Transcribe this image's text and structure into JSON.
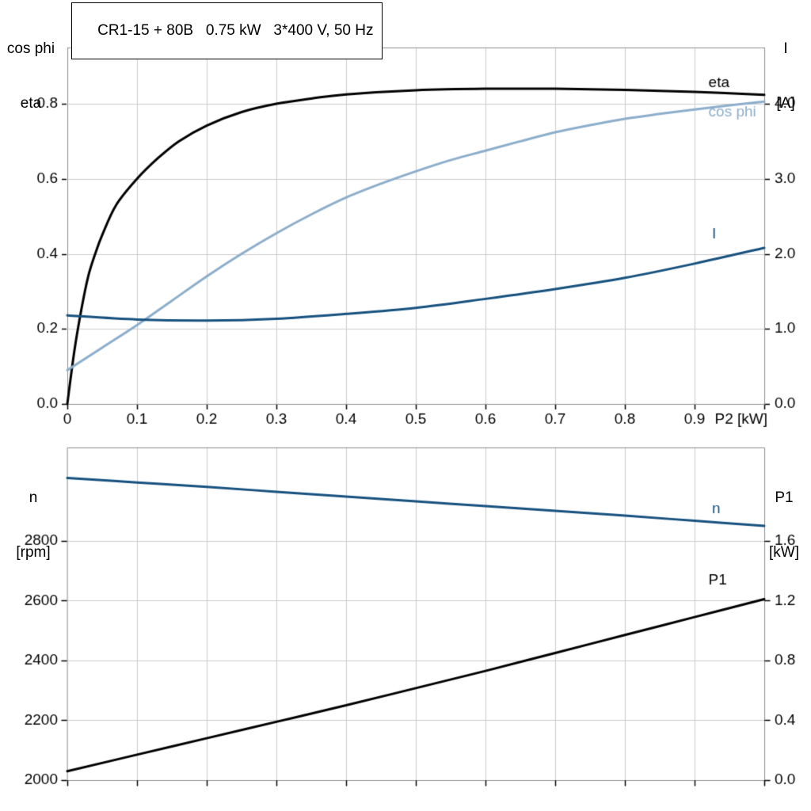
{
  "title": "CR1-15 + 80B   0.75 kW   3*400 V, 50 Hz",
  "colors": {
    "black": "#000000",
    "light_blue": "#8CAECB",
    "dark_blue": "#16517E",
    "grid": "#cbcbcb",
    "frame": "#8c8c8c",
    "text": "#000000"
  },
  "chart_data": [
    {
      "type": "line",
      "title": "CR1-15 + 80B   0.75 kW   3*400 V, 50 Hz",
      "y_left_label": [
        "cos phi",
        "eta"
      ],
      "y_right_label": [
        "I",
        "[A]"
      ],
      "x_axis": {
        "min": 0,
        "max": 1.0,
        "ticks": [
          0,
          0.1,
          0.2,
          0.3,
          0.4,
          0.5,
          0.6,
          0.7,
          0.8,
          0.9
        ],
        "tick_labels": [
          "0",
          "0.1",
          "0.2",
          "0.3",
          "0.4",
          "0.5",
          "0.6",
          "0.7",
          "0.8",
          "0.9"
        ],
        "end_label": "P2 [kW]"
      },
      "y_left": {
        "min": 0,
        "max": 0.95,
        "ticks": [
          0,
          0.2,
          0.4,
          0.6,
          0.8
        ],
        "tick_labels": [
          "0.0",
          "0.2",
          "0.4",
          "0.6",
          "0.8"
        ]
      },
      "y_right": {
        "min": 0,
        "max": 4.75,
        "ticks": [
          0,
          1.0,
          2.0,
          3.0,
          4.0
        ],
        "tick_labels": [
          "0.0",
          "1.0",
          "2.0",
          "3.0",
          "4.0"
        ]
      },
      "grid": true,
      "series": [
        {
          "name": "eta",
          "axis": "left",
          "color_key": "black",
          "label": "eta",
          "label_at": {
            "x": 0.92,
            "y": 0.856
          },
          "x": [
            0,
            0.01,
            0.02,
            0.03,
            0.04,
            0.05,
            0.07,
            0.1,
            0.13,
            0.16,
            0.2,
            0.25,
            0.3,
            0.35,
            0.4,
            0.5,
            0.6,
            0.7,
            0.8,
            0.9,
            1.0
          ],
          "y": [
            0,
            0.14,
            0.25,
            0.34,
            0.4,
            0.45,
            0.53,
            0.6,
            0.655,
            0.7,
            0.742,
            0.778,
            0.8,
            0.814,
            0.825,
            0.836,
            0.84,
            0.84,
            0.837,
            0.832,
            0.824
          ]
        },
        {
          "name": "cos phi",
          "axis": "left",
          "color_key": "light_blue",
          "label": "cos phi",
          "label_at": {
            "x": 0.92,
            "y": 0.777
          },
          "x": [
            0,
            0.05,
            0.1,
            0.15,
            0.2,
            0.25,
            0.3,
            0.35,
            0.4,
            0.45,
            0.5,
            0.55,
            0.6,
            0.65,
            0.7,
            0.75,
            0.8,
            0.85,
            0.9,
            0.95,
            1.0
          ],
          "y": [
            0.09,
            0.15,
            0.21,
            0.275,
            0.34,
            0.4,
            0.455,
            0.505,
            0.55,
            0.587,
            0.62,
            0.65,
            0.675,
            0.7,
            0.724,
            0.743,
            0.76,
            0.773,
            0.785,
            0.796,
            0.806
          ]
        },
        {
          "name": "I",
          "axis": "right",
          "color_key": "dark_blue",
          "label": "I",
          "label_at": {
            "x": 0.925,
            "y": 2.26
          },
          "x": [
            0,
            0.1,
            0.2,
            0.3,
            0.4,
            0.5,
            0.6,
            0.7,
            0.8,
            0.9,
            1.0
          ],
          "y": [
            1.18,
            1.125,
            1.11,
            1.135,
            1.2,
            1.28,
            1.4,
            1.53,
            1.68,
            1.87,
            2.08
          ]
        }
      ]
    },
    {
      "type": "line",
      "y_left_label": [
        "n",
        "[rpm]"
      ],
      "y_right_label": [
        "P1",
        "[kW]"
      ],
      "x_axis": {
        "min": 0,
        "max": 1.0,
        "ticks": [
          0,
          0.1,
          0.2,
          0.3,
          0.4,
          0.5,
          0.6,
          0.7,
          0.8,
          0.9
        ],
        "tick_labels": [],
        "end_label": ""
      },
      "y_left": {
        "min": 2000,
        "max": 3112,
        "ticks": [
          2000,
          2200,
          2400,
          2600,
          2800
        ],
        "tick_labels": [
          "2000",
          "2200",
          "2400",
          "2600",
          "2800"
        ]
      },
      "y_right": {
        "min": 0,
        "max": 2.224,
        "ticks": [
          0,
          0.4,
          0.8,
          1.2,
          1.6
        ],
        "tick_labels": [
          "0.0",
          "0.4",
          "0.8",
          "1.2",
          "1.6"
        ]
      },
      "grid": true,
      "series": [
        {
          "name": "n",
          "axis": "left",
          "color_key": "dark_blue",
          "label": "n",
          "label_at": {
            "x": 0.925,
            "y": 2905
          },
          "x": [
            0,
            0.1,
            0.2,
            0.3,
            0.4,
            0.5,
            0.6,
            0.7,
            0.8,
            0.9,
            1.0
          ],
          "y": [
            3010,
            2995,
            2980,
            2964,
            2948,
            2932,
            2916,
            2900,
            2884,
            2867,
            2850
          ]
        },
        {
          "name": "P1",
          "axis": "right",
          "color_key": "black",
          "label": "P1",
          "label_at": {
            "x": 0.92,
            "y": 1.335
          },
          "x": [
            0,
            0.1,
            0.2,
            0.3,
            0.4,
            0.5,
            0.6,
            0.7,
            0.8,
            0.9,
            1.0
          ],
          "y": [
            0.06,
            0.17,
            0.28,
            0.39,
            0.5,
            0.615,
            0.73,
            0.85,
            0.97,
            1.09,
            1.21
          ]
        }
      ]
    }
  ]
}
